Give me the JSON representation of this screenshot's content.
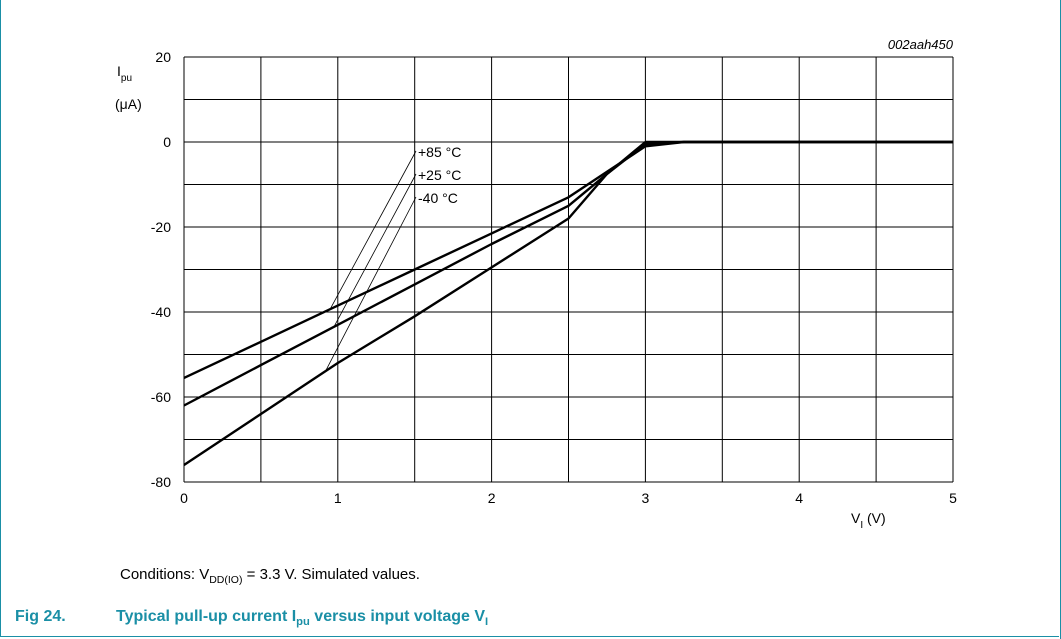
{
  "chart_data": {
    "type": "line",
    "figure_id": "002aah450",
    "x": [
      0,
      0.5,
      1,
      1.5,
      2,
      2.5,
      2.75,
      3,
      3.25,
      3.5,
      4,
      4.5,
      5
    ],
    "series": [
      {
        "name": "+85 °C",
        "values": [
          -55.5,
          -47,
          -38.5,
          -30,
          -21.5,
          -13,
          -7,
          -1,
          0,
          0,
          0,
          0,
          0
        ]
      },
      {
        "name": "+25 °C",
        "values": [
          -62,
          -52.5,
          -43,
          -33.5,
          -24,
          -15,
          -7.5,
          -0.5,
          0,
          0,
          0,
          0,
          0
        ]
      },
      {
        "name": "-40 °C",
        "values": [
          -76,
          -64,
          -52,
          -41,
          -29.5,
          -18,
          -7.5,
          0,
          0,
          0,
          0,
          0,
          0
        ]
      }
    ],
    "xlim": [
      0,
      5
    ],
    "ylim": [
      -80,
      20
    ],
    "xticks": [
      "0",
      "1",
      "2",
      "3",
      "4",
      "5"
    ],
    "yticks": [
      "20",
      "0",
      "-20",
      "-40",
      "-60",
      "-80"
    ],
    "xlabel": {
      "main": "V",
      "sub": "I",
      "unit": " (V)"
    },
    "ylabel": {
      "main": "I",
      "sub": "pu",
      "unit": "(μA)"
    },
    "grid": true
  },
  "conditions": {
    "prefix": "Conditions: V",
    "sub": "DD(IO)",
    "suffix": " = 3.3 V. Simulated values."
  },
  "caption": {
    "number": "Fig 24.",
    "text_a": "Typical pull-up current I",
    "sub_a": "pu",
    "text_b": " versus input voltage V",
    "sub_b": "I"
  },
  "colors": {
    "accent": "#1a8fa6",
    "line": "#000000"
  }
}
